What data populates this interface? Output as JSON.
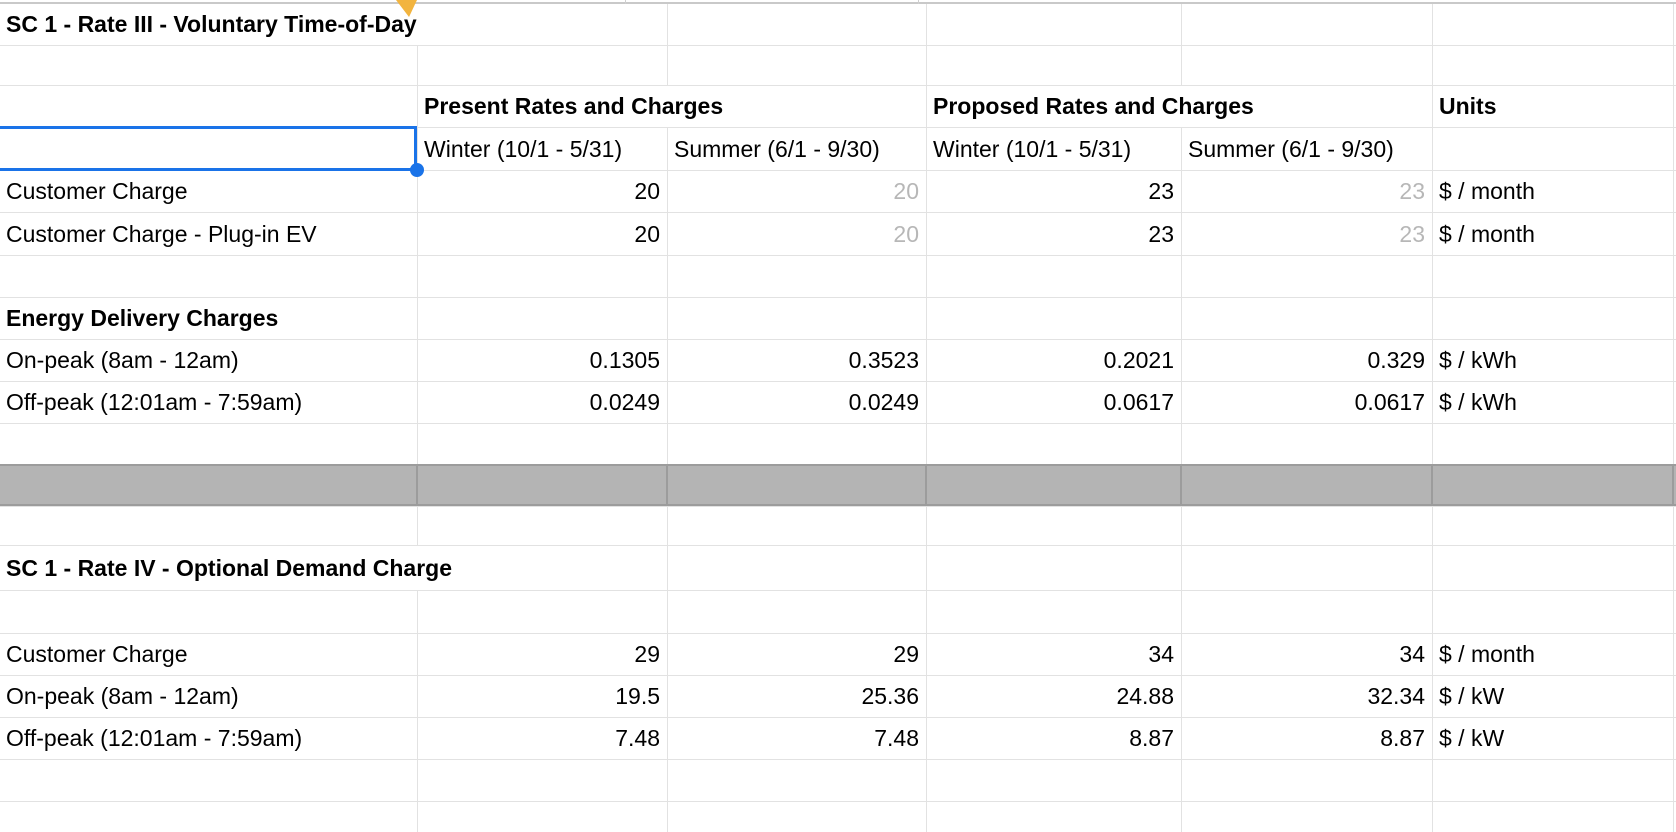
{
  "titles": {
    "section1": "SC 1 - Rate III - Voluntary Time-of-Day",
    "section2": "SC 1 - Rate IV - Optional Demand Charge",
    "energy_subsection": "Energy Delivery Charges"
  },
  "headers": {
    "present_group": "Present Rates and Charges",
    "proposed_group": "Proposed Rates and Charges",
    "units": "Units",
    "present_winter": "Winter (10/1 - 5/31)",
    "present_summer": "Summer (6/1 - 9/30)",
    "proposed_winter": "Winter (10/1 - 5/31)",
    "proposed_summer": "Summer (6/1 - 9/30)"
  },
  "selection": {
    "selected_cell_value": ""
  },
  "colors": {
    "selection_blue": "#1a73e8",
    "note_indicator_orange": "#f2b43f",
    "gray_row_fill": "#b4b4b4",
    "gray_row_border": "#9c9c9c",
    "muted_value_text": "#b7b7b7",
    "gridline": "#e2e2e2"
  },
  "rows": [
    {
      "kind": "section_title",
      "text": "SC 1 - Rate III - Voluntary Time-of-Day"
    },
    {
      "kind": "empty"
    },
    {
      "kind": "group_header",
      "groups": [
        "Present Rates and Charges",
        "Proposed Rates and Charges",
        "Units"
      ]
    },
    {
      "kind": "season_header",
      "cells": [
        "Winter (10/1 - 5/31)",
        "Summer (6/1 - 9/30)",
        "Winter (10/1 - 5/31)",
        "Summer (6/1 - 9/30)"
      ]
    },
    {
      "kind": "data",
      "label": "Customer Charge",
      "values": [
        "20",
        "20",
        "23",
        "23"
      ],
      "muted_cols": [
        1,
        3
      ],
      "unit": "$ / month"
    },
    {
      "kind": "data",
      "label": "Customer Charge - Plug-in EV",
      "values": [
        "20",
        "20",
        "23",
        "23"
      ],
      "muted_cols": [
        1,
        3
      ],
      "unit": "$ / month"
    },
    {
      "kind": "empty"
    },
    {
      "kind": "section_subtitle",
      "text": "Energy Delivery Charges"
    },
    {
      "kind": "data",
      "label": "On-peak (8am - 12am)",
      "values": [
        "0.1305",
        "0.3523",
        "0.2021",
        "0.329"
      ],
      "muted_cols": [],
      "unit": "$ / kWh"
    },
    {
      "kind": "data",
      "label": "Off-peak (12:01am - 7:59am)",
      "values": [
        "0.0249",
        "0.0249",
        "0.0617",
        "0.0617"
      ],
      "muted_cols": [],
      "unit": "$ / kWh"
    },
    {
      "kind": "empty"
    },
    {
      "kind": "gray_separator"
    },
    {
      "kind": "empty"
    },
    {
      "kind": "section_title",
      "text": "SC 1 - Rate IV - Optional Demand Charge"
    },
    {
      "kind": "empty"
    },
    {
      "kind": "data",
      "label": "Customer Charge",
      "values": [
        "29",
        "29",
        "34",
        "34"
      ],
      "muted_cols": [],
      "unit": "$ / month"
    },
    {
      "kind": "data",
      "label": "On-peak (8am - 12am)",
      "values": [
        "19.5",
        "25.36",
        "24.88",
        "32.34"
      ],
      "muted_cols": [],
      "unit": "$ / kW"
    },
    {
      "kind": "data",
      "label": "Off-peak (12:01am - 7:59am)",
      "values": [
        "7.48",
        "7.48",
        "8.87",
        "8.87"
      ],
      "muted_cols": [],
      "unit": "$ / kW"
    },
    {
      "kind": "empty"
    },
    {
      "kind": "empty"
    }
  ]
}
